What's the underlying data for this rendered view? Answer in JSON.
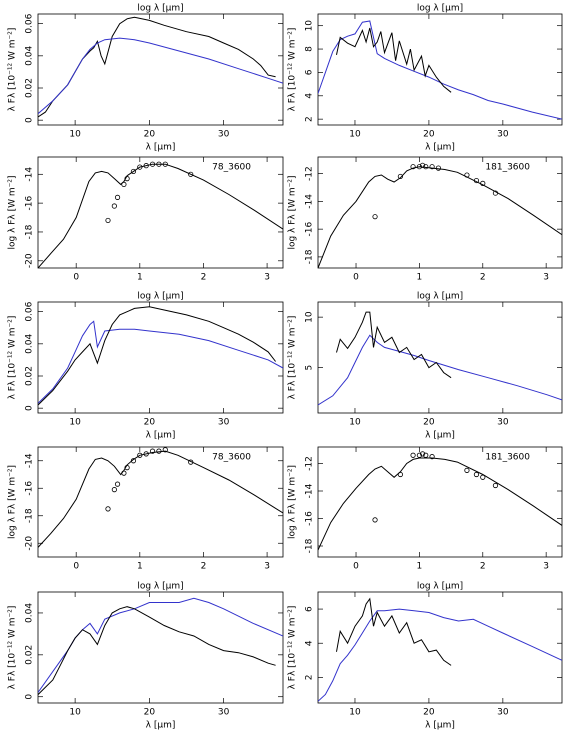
{
  "chart_data": [
    {
      "type": "line",
      "ylabel": "λ Fλ [10⁻¹² W m⁻²]",
      "xlabel": "λ [μm]",
      "xlabel_top": "log λ [μm]",
      "xlim": [
        5,
        38
      ],
      "ylim": [
        -0.003,
        0.066
      ],
      "xticks": [
        10,
        20,
        30
      ],
      "yticks": [
        0,
        0.02,
        0.04,
        0.06
      ],
      "series": [
        {
          "color": "#000000",
          "x": [
            5,
            6,
            7,
            8,
            9,
            10,
            11,
            12,
            12.5,
            13,
            13.5,
            14,
            15,
            16,
            17,
            18,
            20,
            22,
            25,
            28,
            30,
            32,
            34,
            35,
            36,
            37
          ],
          "values": [
            0.002,
            0.005,
            0.012,
            0.017,
            0.022,
            0.03,
            0.038,
            0.043,
            0.045,
            0.049,
            0.04,
            0.035,
            0.052,
            0.06,
            0.063,
            0.064,
            0.062,
            0.059,
            0.055,
            0.052,
            0.048,
            0.044,
            0.038,
            0.034,
            0.028,
            0.027
          ]
        },
        {
          "color": "#3333cc",
          "x": [
            5,
            7,
            9,
            10,
            11,
            12,
            13,
            14,
            16,
            18,
            20,
            24,
            28,
            32,
            36,
            38
          ],
          "values": [
            0.004,
            0.012,
            0.022,
            0.03,
            0.038,
            0.044,
            0.048,
            0.05,
            0.051,
            0.05,
            0.048,
            0.043,
            0.038,
            0.032,
            0.026,
            0.023
          ]
        }
      ]
    },
    {
      "type": "line",
      "ylabel": "λ Fλ [10⁻¹² W m⁻²]",
      "xlabel": "λ [μm]",
      "xlabel_top": "log λ [μm]",
      "xlim": [
        5,
        38
      ],
      "ylim": [
        1.5,
        11
      ],
      "xticks": [
        10,
        20,
        30
      ],
      "yticks": [
        2,
        4,
        6,
        8,
        10
      ],
      "series": [
        {
          "color": "#3333cc",
          "x": [
            5,
            6,
            7,
            8,
            9,
            10,
            11,
            12,
            13,
            14,
            16,
            18,
            20,
            22,
            24,
            26,
            28,
            30,
            34,
            38
          ],
          "values": [
            4.2,
            6,
            7.8,
            8.8,
            9.1,
            9.3,
            10.3,
            10.4,
            7.6,
            7.2,
            6.6,
            6.1,
            5.6,
            5,
            4.5,
            4.1,
            3.6,
            3.3,
            2.6,
            2
          ]
        },
        {
          "color": "#000000",
          "x": [
            7.5,
            8,
            9,
            10,
            11,
            11.5,
            12,
            12.5,
            13,
            13.5,
            14,
            15,
            15.5,
            16,
            17,
            17.5,
            18,
            19,
            19.5,
            20,
            21,
            22,
            23
          ],
          "values": [
            7.5,
            9,
            8.5,
            8.2,
            9.6,
            8.6,
            9.8,
            8.2,
            8.6,
            9.5,
            7.7,
            9.4,
            7,
            8.7,
            6.7,
            8,
            6.2,
            7.4,
            5.7,
            6.6,
            5.6,
            4.8,
            4.3
          ]
        }
      ]
    },
    {
      "type": "log-sed",
      "ylabel": "log λ Fλ [W m⁻²]",
      "annotation": "78_3600",
      "xlim": [
        -0.6,
        3.25
      ],
      "ylim": [
        -20.5,
        -12.8
      ],
      "xticks": [
        0,
        1,
        2,
        3
      ],
      "yticks": [
        -20,
        -18,
        -16,
        -14
      ],
      "series": [
        {
          "color": "#000000",
          "x": [
            -0.6,
            -0.4,
            -0.2,
            0,
            0.2,
            0.3,
            0.4,
            0.5,
            0.6,
            0.7,
            0.75,
            0.8,
            0.9,
            1,
            1.2,
            1.4,
            1.6,
            2,
            2.4,
            2.8,
            3.25
          ],
          "values": [
            -20.5,
            -19.5,
            -18.5,
            -17,
            -14.5,
            -13.9,
            -13.8,
            -13.9,
            -14.3,
            -14.7,
            -14.5,
            -14.1,
            -13.8,
            -13.5,
            -13.3,
            -13.3,
            -13.6,
            -14.4,
            -15.4,
            -16.5,
            -17.8
          ]
        }
      ],
      "points": {
        "x": [
          0.5,
          0.6,
          0.65,
          0.75,
          0.8,
          0.9,
          1,
          1.1,
          1.2,
          1.3,
          1.4,
          1.8
        ],
        "values": [
          -17.2,
          -16.2,
          -15.6,
          -14.7,
          -14.3,
          -13.8,
          -13.5,
          -13.4,
          -13.3,
          -13.3,
          -13.3,
          -14
        ]
      }
    },
    {
      "type": "log-sed",
      "ylabel": "log λ Fλ [W m⁻²]",
      "annotation": "181_3600",
      "xlim": [
        -0.6,
        3.25
      ],
      "ylim": [
        -18.8,
        -10.8
      ],
      "xticks": [
        0,
        1,
        2,
        3
      ],
      "yticks": [
        -18,
        -16,
        -14,
        -12
      ],
      "series": [
        {
          "color": "#000000",
          "x": [
            -0.6,
            -0.4,
            -0.2,
            0,
            0.2,
            0.3,
            0.4,
            0.5,
            0.6,
            0.7,
            0.8,
            0.9,
            1,
            1.2,
            1.4,
            1.6,
            2,
            2.4,
            2.8,
            3.25
          ],
          "values": [
            -18.8,
            -16.5,
            -15,
            -14,
            -12.6,
            -12.2,
            -12.1,
            -12.4,
            -12.6,
            -12.3,
            -11.8,
            -11.6,
            -11.5,
            -11.6,
            -11.7,
            -11.9,
            -12.8,
            -13.8,
            -15,
            -16.4
          ]
        }
      ],
      "points": {
        "x": [
          0.3,
          0.7,
          0.9,
          1,
          1.05,
          1.1,
          1.2,
          1.3,
          1.75,
          1.9,
          2,
          2.2
        ],
        "values": [
          -15.1,
          -12.2,
          -11.5,
          -11.5,
          -11.4,
          -11.5,
          -11.5,
          -11.6,
          -12.1,
          -12.5,
          -12.7,
          -13.4
        ]
      }
    },
    {
      "type": "line",
      "ylabel": "λ Fλ [10⁻¹² W m⁻²]",
      "xlabel": "λ [μm]",
      "xlabel_top": "log λ [μm]",
      "xlim": [
        5,
        38
      ],
      "ylim": [
        -0.003,
        0.066
      ],
      "xticks": [
        10,
        20,
        30
      ],
      "yticks": [
        0,
        0.02,
        0.04,
        0.06
      ],
      "series": [
        {
          "color": "#3333cc",
          "x": [
            5,
            7,
            9,
            10,
            11,
            12,
            12.5,
            13,
            14,
            16,
            18,
            20,
            24,
            28,
            32,
            36,
            38
          ],
          "values": [
            0.003,
            0.012,
            0.025,
            0.035,
            0.045,
            0.052,
            0.054,
            0.038,
            0.048,
            0.049,
            0.049,
            0.048,
            0.046,
            0.042,
            0.036,
            0.03,
            0.025
          ]
        },
        {
          "color": "#000000",
          "x": [
            5,
            7,
            9,
            10,
            11,
            12,
            13,
            14,
            15,
            16,
            17,
            18,
            20,
            22,
            25,
            28,
            30,
            32,
            34,
            36,
            37
          ],
          "values": [
            0.002,
            0.011,
            0.023,
            0.03,
            0.035,
            0.04,
            0.028,
            0.042,
            0.052,
            0.058,
            0.06,
            0.062,
            0.063,
            0.061,
            0.058,
            0.054,
            0.05,
            0.046,
            0.041,
            0.035,
            0.029
          ]
        }
      ]
    },
    {
      "type": "line",
      "ylabel": "λ Fλ [10⁻¹² W m⁻²]",
      "xlabel": "λ [μm]",
      "xlabel_top": "log λ [μm]",
      "xlim": [
        5,
        38
      ],
      "ylim": [
        0.5,
        11.5
      ],
      "xticks": [
        10,
        20,
        30
      ],
      "yticks": [
        5,
        10
      ],
      "series": [
        {
          "color": "#3333cc",
          "x": [
            5,
            7,
            9,
            10,
            11,
            12,
            13,
            14,
            16,
            18,
            20,
            24,
            28,
            32,
            36,
            38
          ],
          "values": [
            1.3,
            2.2,
            4,
            5.5,
            7,
            8.2,
            7.5,
            7,
            6.6,
            6.2,
            5.7,
            4.8,
            4,
            3.2,
            2.3,
            1.8
          ]
        },
        {
          "color": "#000000",
          "x": [
            7.5,
            8,
            9,
            10,
            11,
            11.5,
            12,
            12.5,
            13,
            14,
            15,
            16,
            17,
            18,
            19,
            20,
            21,
            22,
            23
          ],
          "values": [
            6.5,
            7.8,
            6.9,
            8,
            9.5,
            10.5,
            10.5,
            7,
            9,
            7.5,
            8,
            6.5,
            7,
            5.8,
            6.3,
            5,
            5.5,
            4.5,
            4
          ]
        }
      ]
    },
    {
      "type": "log-sed",
      "ylabel": "log λ Fλ [W m⁻²]",
      "annotation": "78_3600",
      "xlim": [
        -0.6,
        3.25
      ],
      "ylim": [
        -21,
        -13
      ],
      "xticks": [
        0,
        1,
        2,
        3
      ],
      "yticks": [
        -20,
        -18,
        -16,
        -14
      ],
      "series": [
        {
          "color": "#000000",
          "x": [
            -0.6,
            -0.4,
            -0.2,
            0,
            0.2,
            0.3,
            0.4,
            0.5,
            0.6,
            0.7,
            0.75,
            0.8,
            0.9,
            1,
            1.2,
            1.4,
            1.6,
            2,
            2.4,
            2.8,
            3.25
          ],
          "values": [
            -20.3,
            -19.3,
            -18.2,
            -16.8,
            -14.6,
            -13.9,
            -13.8,
            -14,
            -14.4,
            -15,
            -14.7,
            -14.3,
            -13.9,
            -13.6,
            -13.4,
            -13.3,
            -13.6,
            -14.5,
            -15.4,
            -16.5,
            -17.8
          ]
        }
      ],
      "points": {
        "x": [
          0.5,
          0.6,
          0.65,
          0.75,
          0.8,
          0.9,
          1,
          1.1,
          1.2,
          1.3,
          1.4,
          1.8
        ],
        "values": [
          -17.5,
          -16.1,
          -15.7,
          -14.9,
          -14.5,
          -14,
          -13.6,
          -13.5,
          -13.3,
          -13.3,
          -13.2,
          -14.1
        ]
      }
    },
    {
      "type": "log-sed",
      "ylabel": "log λ Fλ [W m⁻²]",
      "annotation": "181_3600",
      "xlim": [
        -0.6,
        3.25
      ],
      "ylim": [
        -18.8,
        -10.8
      ],
      "xticks": [
        0,
        1,
        2,
        3
      ],
      "yticks": [
        -18,
        -16,
        -14,
        -12
      ],
      "series": [
        {
          "color": "#000000",
          "x": [
            -0.6,
            -0.4,
            -0.2,
            0,
            0.2,
            0.3,
            0.4,
            0.5,
            0.6,
            0.7,
            0.8,
            0.9,
            1,
            1.2,
            1.4,
            1.6,
            2,
            2.4,
            2.8,
            3.25
          ],
          "values": [
            -18.3,
            -16.3,
            -14.9,
            -13.8,
            -12.8,
            -12.4,
            -12.2,
            -12.6,
            -13,
            -12.6,
            -12,
            -11.7,
            -11.6,
            -11.6,
            -11.7,
            -11.9,
            -12.8,
            -13.9,
            -15.1,
            -16.5
          ]
        }
      ],
      "points": {
        "x": [
          0.3,
          0.7,
          0.9,
          1,
          1.05,
          1.1,
          1.2,
          1.75,
          1.9,
          2,
          2.2
        ],
        "values": [
          -16.1,
          -12.8,
          -11.4,
          -11.4,
          -11.3,
          -11.4,
          -11.5,
          -12.5,
          -12.8,
          -13,
          -13.6
        ]
      }
    },
    {
      "type": "line",
      "ylabel": "λ Fλ [10⁻¹² W m⁻²]",
      "xlabel": "λ [μm]",
      "xlabel_top": "log λ [μm]",
      "xlim": [
        5,
        38
      ],
      "ylim": [
        -0.003,
        0.05
      ],
      "xticks": [
        10,
        20,
        30
      ],
      "yticks": [
        0,
        0.02,
        0.04
      ],
      "series": [
        {
          "color": "#3333cc",
          "x": [
            5,
            7,
            9,
            10,
            11,
            12,
            13,
            14,
            16,
            18,
            20,
            22,
            24,
            26,
            28,
            30,
            34,
            38
          ],
          "values": [
            0.002,
            0.012,
            0.022,
            0.028,
            0.032,
            0.035,
            0.03,
            0.037,
            0.04,
            0.042,
            0.045,
            0.045,
            0.045,
            0.047,
            0.045,
            0.042,
            0.035,
            0.029
          ]
        },
        {
          "color": "#000000",
          "x": [
            5,
            7,
            8,
            9,
            10,
            11,
            12,
            13,
            14,
            15,
            16,
            17,
            18,
            20,
            22,
            24,
            26,
            28,
            30,
            32,
            34,
            36,
            37
          ],
          "values": [
            0.001,
            0.008,
            0.015,
            0.022,
            0.028,
            0.032,
            0.03,
            0.025,
            0.034,
            0.04,
            0.042,
            0.043,
            0.042,
            0.038,
            0.034,
            0.031,
            0.029,
            0.025,
            0.022,
            0.021,
            0.019,
            0.016,
            0.015
          ]
        }
      ]
    },
    {
      "type": "line",
      "ylabel": "λ Fλ [10⁻¹² W m⁻²]",
      "xlabel": "λ [μm]",
      "xlabel_top": "log λ [μm]",
      "xlim": [
        5,
        38
      ],
      "ylim": [
        0.5,
        7
      ],
      "xticks": [
        10,
        20,
        30
      ],
      "yticks": [
        2,
        4,
        6
      ],
      "series": [
        {
          "color": "#3333cc",
          "x": [
            5,
            6,
            7,
            8,
            9,
            10,
            11,
            12,
            13,
            14,
            16,
            18,
            20,
            22,
            24,
            26,
            28,
            30,
            34,
            38
          ],
          "values": [
            0.6,
            1,
            1.8,
            2.8,
            3.3,
            3.9,
            4.6,
            5.3,
            5.9,
            5.9,
            6,
            5.9,
            5.8,
            5.5,
            5.3,
            5.4,
            5,
            4.6,
            3.8,
            3
          ]
        },
        {
          "color": "#000000",
          "x": [
            7.5,
            8,
            9,
            10,
            11,
            11.5,
            12,
            12.5,
            13,
            14,
            15,
            16,
            17,
            18,
            19,
            20,
            21,
            22,
            23
          ],
          "values": [
            3.5,
            4.7,
            4,
            5,
            5.6,
            6.3,
            6.6,
            5,
            5.8,
            5,
            5.6,
            4.6,
            5.2,
            4,
            4.2,
            3.5,
            3.6,
            3,
            2.7
          ]
        }
      ]
    }
  ]
}
